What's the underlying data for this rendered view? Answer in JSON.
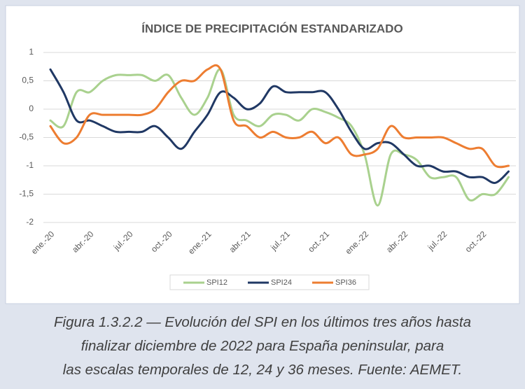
{
  "chart_data": {
    "type": "line",
    "title": "ÍNDICE DE PRECIPITACIÓN ESTANDARIZADO",
    "categories": [
      "ene.-20",
      null,
      null,
      "abr.-20",
      null,
      null,
      "jul.-20",
      null,
      null,
      "oct.-20",
      null,
      null,
      "ene.-21",
      null,
      null,
      "abr.-21",
      null,
      null,
      "jul.-21",
      null,
      null,
      "oct.-21",
      null,
      null,
      "ene.-22",
      null,
      null,
      "abr.-22",
      null,
      null,
      "jul.-22",
      null,
      null,
      "oct.-22",
      null,
      null
    ],
    "series": [
      {
        "name": "SPI12",
        "color": "#a9d18e",
        "values": [
          -0.2,
          -0.3,
          0.3,
          0.3,
          0.5,
          0.6,
          0.6,
          0.6,
          0.5,
          0.6,
          0.2,
          -0.1,
          0.2,
          0.7,
          -0.1,
          -0.2,
          -0.3,
          -0.1,
          -0.1,
          -0.2,
          0,
          -0.05,
          -0.15,
          -0.3,
          -0.8,
          -1.7,
          -0.8,
          -0.8,
          -0.9,
          -1.2,
          -1.2,
          -1.2,
          -1.6,
          -1.5,
          -1.5,
          -1.2
        ]
      },
      {
        "name": "SPI24",
        "color": "#203864",
        "values": [
          0.7,
          0.3,
          -0.2,
          -0.2,
          -0.3,
          -0.4,
          -0.4,
          -0.4,
          -0.3,
          -0.5,
          -0.7,
          -0.4,
          -0.1,
          0.3,
          0.2,
          0,
          0.1,
          0.4,
          0.3,
          0.3,
          0.3,
          0.3,
          0,
          -0.4,
          -0.7,
          -0.6,
          -0.6,
          -0.8,
          -1.0,
          -1.0,
          -1.1,
          -1.1,
          -1.2,
          -1.2,
          -1.3,
          -1.1
        ]
      },
      {
        "name": "SPI36",
        "color": "#ed7d31",
        "values": [
          -0.3,
          -0.6,
          -0.5,
          -0.1,
          -0.1,
          -0.1,
          -0.1,
          -0.1,
          0,
          0.3,
          0.5,
          0.5,
          0.7,
          0.7,
          -0.2,
          -0.3,
          -0.5,
          -0.4,
          -0.5,
          -0.5,
          -0.4,
          -0.6,
          -0.5,
          -0.8,
          -0.8,
          -0.7,
          -0.3,
          -0.5,
          -0.5,
          -0.5,
          -0.5,
          -0.6,
          -0.7,
          -0.7,
          -1.0,
          -1.0
        ]
      }
    ],
    "ylim": [
      -2,
      1
    ],
    "yticks": [
      -2,
      {
        "value": -1.5,
        "label": "-1,5"
      },
      -1,
      {
        "value": -0.5,
        "label": "-0,5"
      },
      0,
      {
        "value": 0.5,
        "label": "0,5"
      },
      1
    ],
    "grid": true,
    "legend": "bottom"
  },
  "caption_lines": [
    "Figura 1.3.2.2 — Evolución del SPI en los últimos tres años hasta",
    "finalizar diciembre de 2022 para España peninsular, para",
    "las escalas temporales de 12, 24 y 36 meses. Fuente: AEMET."
  ]
}
